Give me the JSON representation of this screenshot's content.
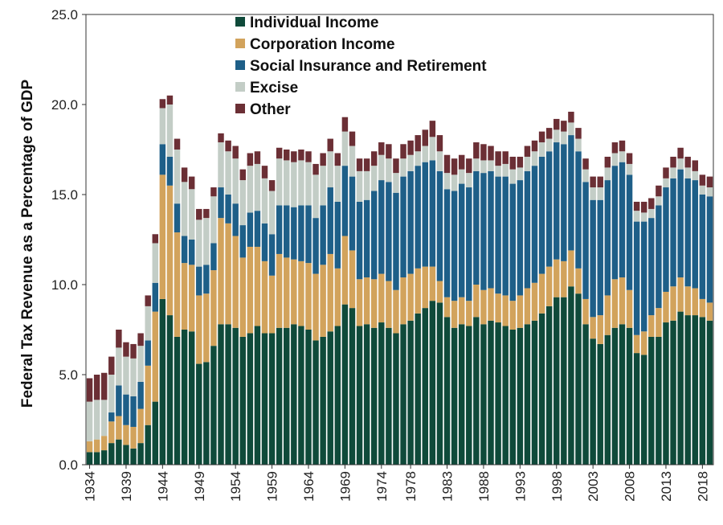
{
  "chart_data": {
    "type": "bar",
    "stacked": true,
    "ylabel": "Federal Tax Revenue as a Percentage of GDP",
    "ylim": [
      0,
      25
    ],
    "yticks": [
      "0.0",
      "5.0",
      "10.0",
      "15.0",
      "20.0",
      "25.0"
    ],
    "ytick_values": [
      0,
      5,
      10,
      15,
      20,
      25
    ],
    "xtick_labels": [
      "1934",
      "1939",
      "1944",
      "1949",
      "1954",
      "1959",
      "1964",
      "1969",
      "1974",
      "1978",
      "1983",
      "1988",
      "1993",
      "1998",
      "2003",
      "2008",
      "2013",
      "2018"
    ],
    "x": [
      1934,
      1935,
      1936,
      1937,
      1938,
      1939,
      1940,
      1941,
      1942,
      1943,
      1944,
      1945,
      1946,
      1947,
      1948,
      1949,
      1950,
      1951,
      1952,
      1953,
      1954,
      1955,
      1956,
      1957,
      1958,
      1959,
      1960,
      1961,
      1962,
      1963,
      1964,
      1965,
      1966,
      1967,
      1968,
      1969,
      1970,
      1971,
      1972,
      1973,
      1974,
      1975,
      1976,
      1977,
      1978,
      1979,
      1980,
      1981,
      1982,
      1983,
      1984,
      1985,
      1986,
      1987,
      1988,
      1989,
      1990,
      1991,
      1992,
      1993,
      1994,
      1995,
      1996,
      1997,
      1998,
      1999,
      2000,
      2001,
      2002,
      2003,
      2004,
      2005,
      2006,
      2007,
      2008,
      2009,
      2010,
      2011,
      2012,
      2013,
      2014,
      2015,
      2016,
      2017,
      2018,
      2019
    ],
    "legend_position": "top-center",
    "grid": false,
    "series": [
      {
        "name": "Individual Income",
        "color": "#0f4a3a",
        "values": [
          0.7,
          0.7,
          0.8,
          1.2,
          1.4,
          1.1,
          0.9,
          1.2,
          2.2,
          3.5,
          9.2,
          8.3,
          7.1,
          7.5,
          7.4,
          5.6,
          5.7,
          6.6,
          7.8,
          7.8,
          7.6,
          7.1,
          7.3,
          7.7,
          7.3,
          7.3,
          7.6,
          7.6,
          7.8,
          7.7,
          7.5,
          6.9,
          7.1,
          7.4,
          7.7,
          8.9,
          8.7,
          7.7,
          7.8,
          7.6,
          7.9,
          7.6,
          7.3,
          7.8,
          8.0,
          8.4,
          8.7,
          9.1,
          9.0,
          8.2,
          7.6,
          7.8,
          7.7,
          8.2,
          7.8,
          8.0,
          7.9,
          7.7,
          7.5,
          7.6,
          7.8,
          8.0,
          8.4,
          8.8,
          9.3,
          9.3,
          9.9,
          9.5,
          7.8,
          7.0,
          6.7,
          7.2,
          7.6,
          7.8,
          7.6,
          6.2,
          6.1,
          7.1,
          7.1,
          7.9,
          8.0,
          8.5,
          8.3,
          8.3,
          8.2,
          8.0
        ]
      },
      {
        "name": "Corporation Income",
        "color": "#d2a35c",
        "values": [
          0.6,
          0.7,
          0.8,
          1.2,
          1.3,
          1.1,
          1.2,
          1.9,
          3.3,
          5.0,
          6.9,
          7.2,
          5.8,
          3.7,
          3.7,
          3.8,
          3.8,
          4.2,
          5.9,
          5.6,
          5.1,
          4.4,
          4.8,
          4.4,
          4.0,
          3.2,
          4.1,
          3.9,
          3.6,
          3.6,
          3.7,
          3.7,
          4.0,
          4.3,
          3.2,
          3.8,
          3.2,
          2.6,
          2.6,
          2.7,
          2.7,
          2.6,
          2.4,
          2.6,
          2.6,
          2.5,
          2.3,
          1.9,
          1.2,
          1.1,
          1.5,
          1.5,
          1.4,
          1.8,
          1.9,
          1.8,
          1.6,
          1.7,
          1.6,
          1.8,
          2.0,
          2.1,
          2.2,
          2.2,
          2.1,
          2.0,
          2.0,
          1.4,
          1.4,
          1.2,
          1.6,
          2.2,
          2.7,
          2.6,
          2.1,
          1.0,
          1.3,
          1.2,
          1.6,
          1.7,
          1.9,
          1.9,
          1.6,
          1.5,
          1.0,
          1.0
        ]
      },
      {
        "name": "Social Insurance and Retirement",
        "color": "#1e5f88",
        "values": [
          0.0,
          0.0,
          0.0,
          0.5,
          1.7,
          1.7,
          1.7,
          1.5,
          1.4,
          1.6,
          1.7,
          1.6,
          1.6,
          1.5,
          1.4,
          1.6,
          1.6,
          1.5,
          1.7,
          1.6,
          1.8,
          1.8,
          1.9,
          2.0,
          2.1,
          2.3,
          2.7,
          2.9,
          2.9,
          3.1,
          3.2,
          3.1,
          3.3,
          3.7,
          3.7,
          3.9,
          4.1,
          4.3,
          4.3,
          4.9,
          5.2,
          5.5,
          5.4,
          5.6,
          5.7,
          5.7,
          5.8,
          5.9,
          6.1,
          6.0,
          6.1,
          6.3,
          6.3,
          6.3,
          6.5,
          6.5,
          6.5,
          6.6,
          6.5,
          6.4,
          6.5,
          6.5,
          6.5,
          6.4,
          6.5,
          6.5,
          6.4,
          6.5,
          6.5,
          6.5,
          6.4,
          6.4,
          6.3,
          6.4,
          6.4,
          6.3,
          6.1,
          5.4,
          5.7,
          5.8,
          6.0,
          6.0,
          6.0,
          6.0,
          5.8,
          5.9
        ]
      },
      {
        "name": "Excise",
        "color": "#c3cdc6",
        "values": [
          2.2,
          2.2,
          2.0,
          2.1,
          2.1,
          2.1,
          2.1,
          2.0,
          1.9,
          2.2,
          2.0,
          2.9,
          3.0,
          3.0,
          2.8,
          2.6,
          2.6,
          2.6,
          2.5,
          2.4,
          2.5,
          2.5,
          2.6,
          2.6,
          2.5,
          2.4,
          2.6,
          2.5,
          2.5,
          2.5,
          2.4,
          2.4,
          2.2,
          2.0,
          2.0,
          1.9,
          1.7,
          1.7,
          1.6,
          1.4,
          1.4,
          1.3,
          1.1,
          1.0,
          0.9,
          0.8,
          0.9,
          1.3,
          1.1,
          0.9,
          0.9,
          0.8,
          0.8,
          0.7,
          0.7,
          0.6,
          0.6,
          0.7,
          0.8,
          0.7,
          0.8,
          0.8,
          0.8,
          0.7,
          0.7,
          0.7,
          0.7,
          0.7,
          0.7,
          0.7,
          0.7,
          0.7,
          0.7,
          0.6,
          0.6,
          0.6,
          0.5,
          0.5,
          0.5,
          0.5,
          0.6,
          0.6,
          0.6,
          0.5,
          0.5,
          0.5
        ]
      },
      {
        "name": "Other",
        "color": "#6b2f35",
        "values": [
          1.3,
          1.4,
          1.5,
          1.0,
          1.0,
          0.8,
          0.8,
          0.7,
          0.6,
          0.5,
          0.5,
          0.5,
          0.6,
          0.8,
          0.7,
          0.6,
          0.5,
          0.5,
          0.5,
          0.6,
          0.7,
          0.6,
          0.7,
          0.7,
          0.7,
          0.6,
          0.6,
          0.6,
          0.6,
          0.6,
          0.6,
          0.6,
          0.7,
          0.7,
          0.7,
          0.8,
          0.8,
          0.7,
          0.7,
          0.8,
          0.7,
          0.8,
          0.8,
          0.8,
          0.8,
          0.9,
          0.9,
          0.9,
          0.9,
          1.0,
          0.9,
          0.8,
          0.8,
          0.9,
          0.9,
          0.8,
          0.8,
          0.7,
          0.7,
          0.6,
          0.6,
          0.6,
          0.6,
          0.6,
          0.6,
          0.6,
          0.6,
          0.6,
          0.6,
          0.6,
          0.6,
          0.6,
          0.6,
          0.6,
          0.6,
          0.5,
          0.6,
          0.6,
          0.6,
          0.6,
          0.6,
          0.6,
          0.6,
          0.6,
          0.6,
          0.6
        ]
      }
    ]
  }
}
